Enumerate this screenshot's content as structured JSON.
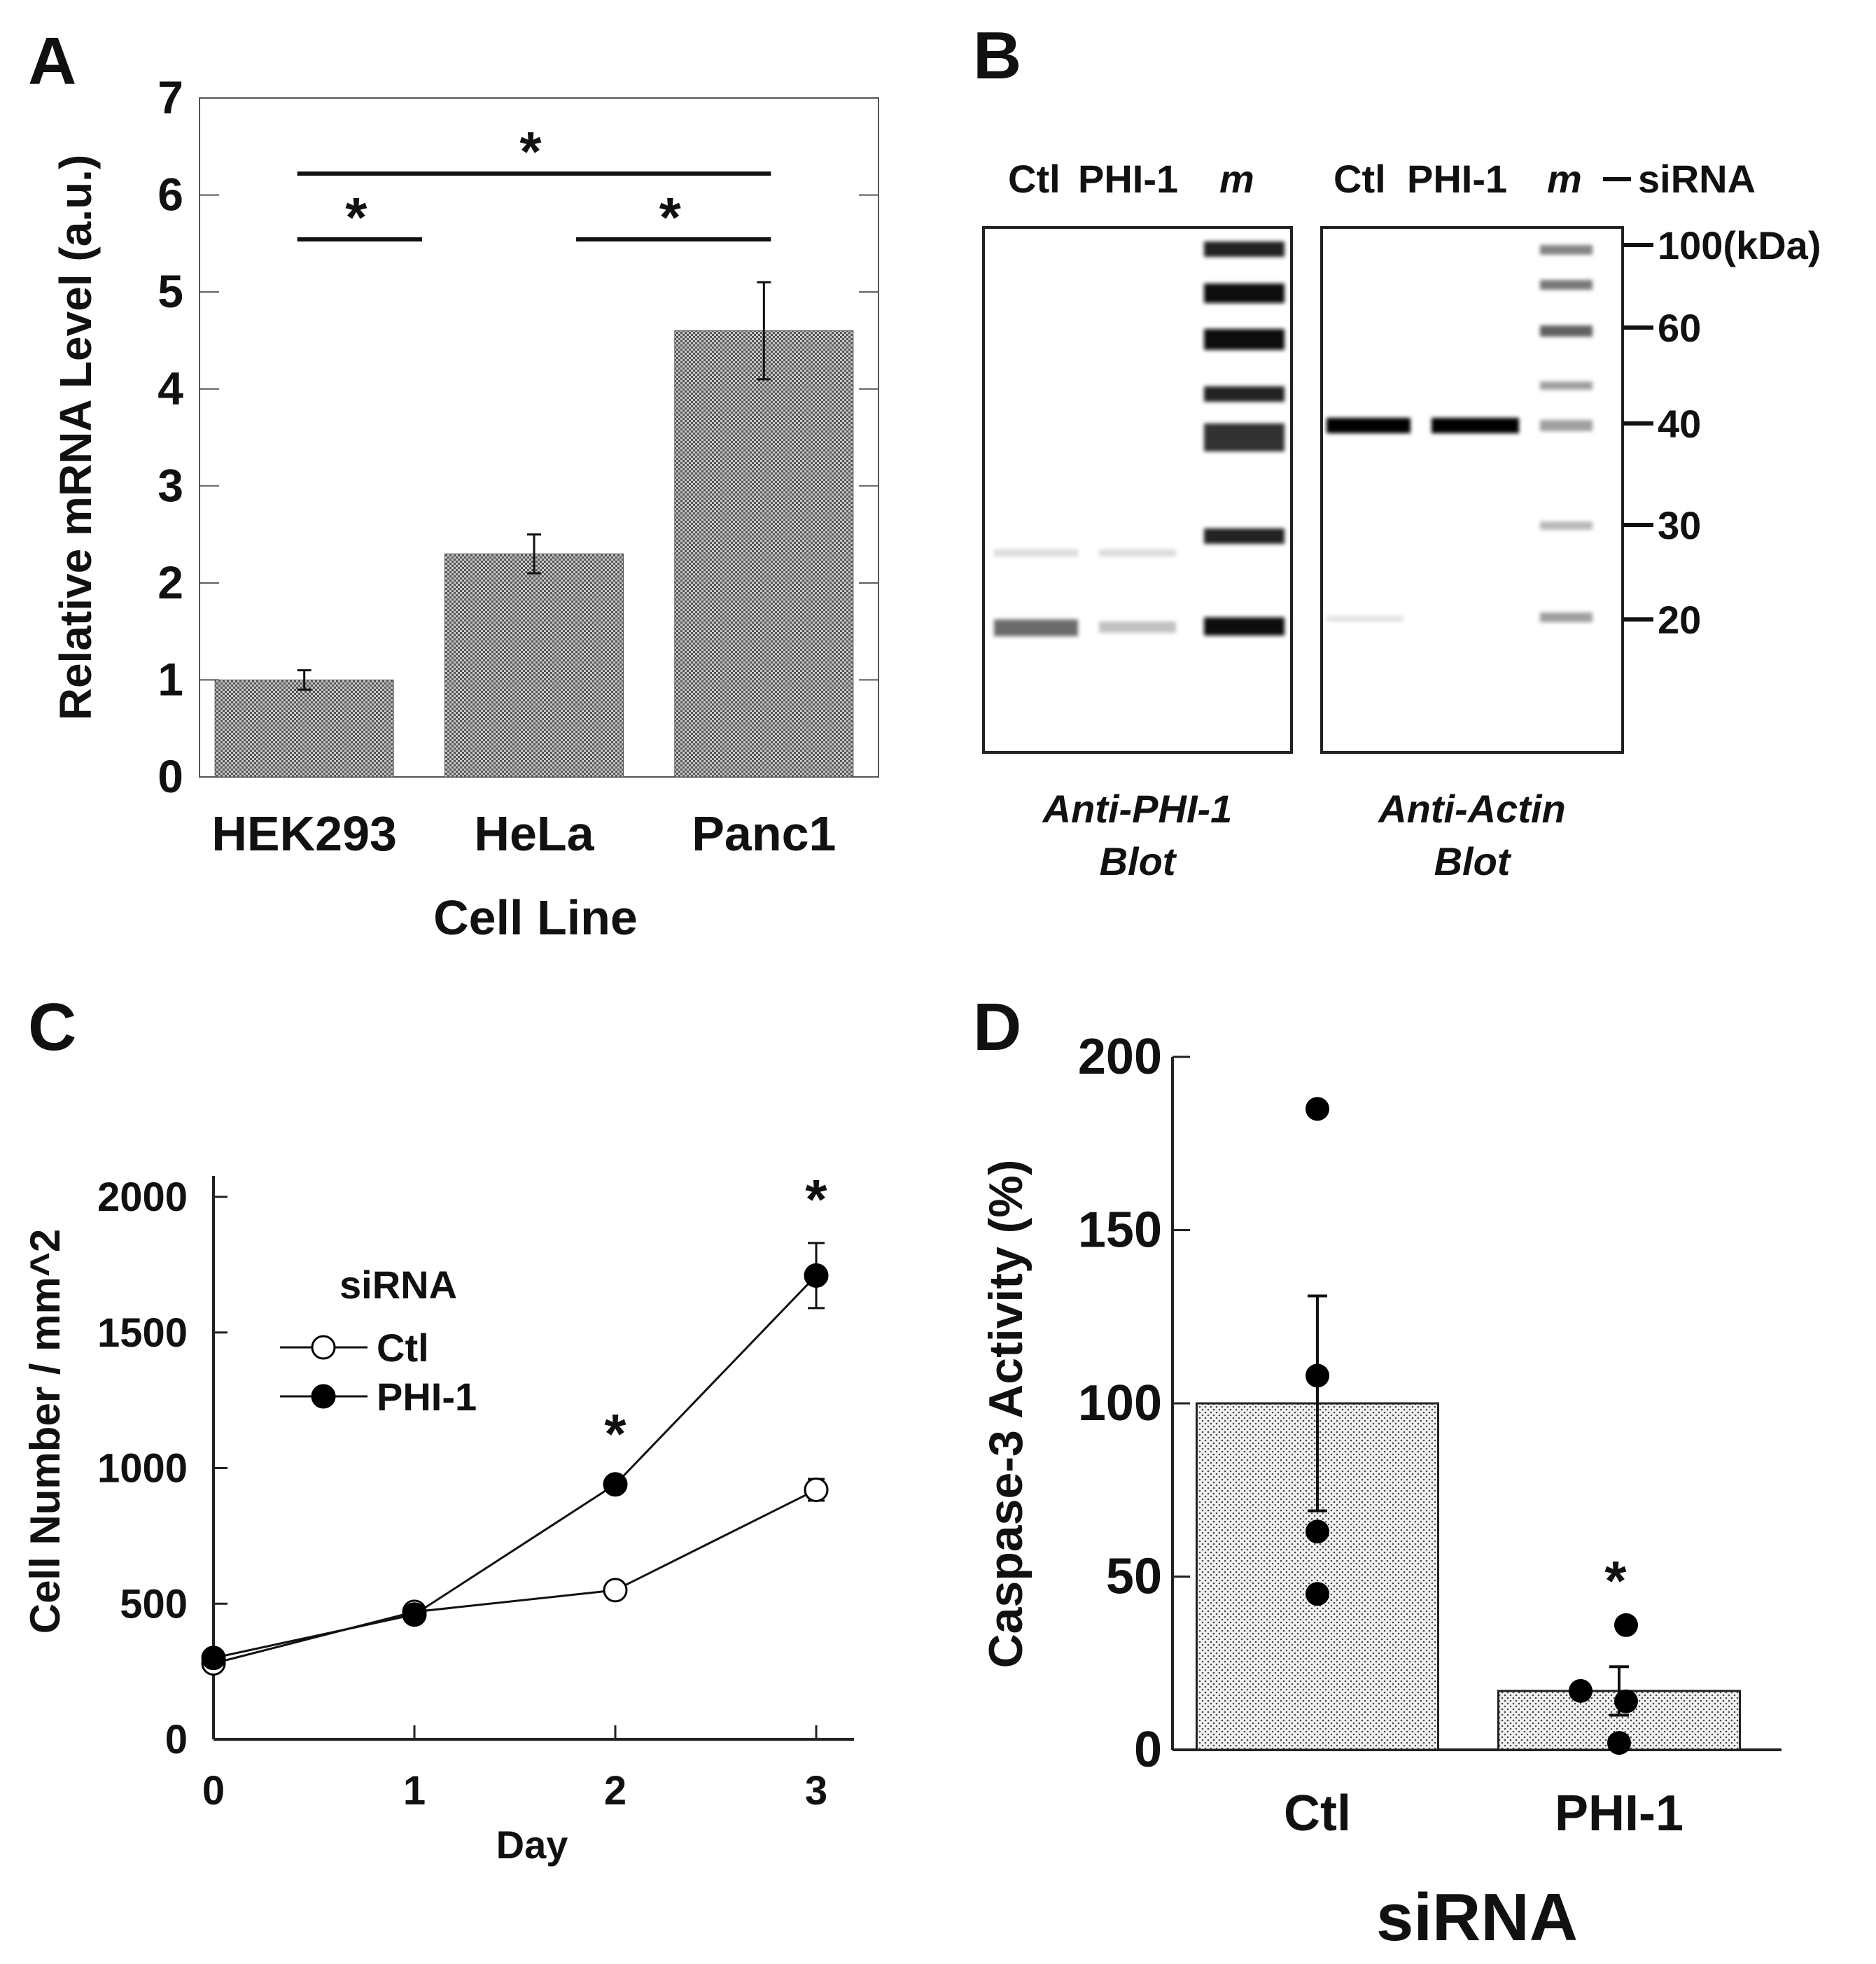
{
  "panel_labels": [
    "A",
    "B",
    "C",
    "D"
  ],
  "chart_data": [
    {
      "panel": "A",
      "type": "bar",
      "categories": [
        "HEK293",
        "HeLa",
        "Panc1"
      ],
      "values": [
        1.0,
        2.3,
        4.6
      ],
      "errors": [
        0.1,
        0.2,
        0.5
      ],
      "xlabel": "Cell Line",
      "ylabel": "Relative mRNA Level (a.u.)",
      "ylim": [
        0,
        7
      ],
      "yticks": [
        "0",
        "1",
        "2",
        "3",
        "4",
        "5",
        "6",
        "7"
      ],
      "significance": [
        {
          "from": "HEK293",
          "to": "Panc1",
          "label": "*"
        },
        {
          "from": "HEK293",
          "to": "HeLa",
          "label": "*"
        },
        {
          "from": "HeLa",
          "to": "Panc1",
          "label": "*"
        }
      ]
    },
    {
      "panel": "C",
      "type": "line",
      "x": [
        0,
        1,
        2,
        3
      ],
      "xticks": [
        "0",
        "1",
        "2",
        "3"
      ],
      "series": [
        {
          "name": "Ctl",
          "marker": "open-circle",
          "values": [
            280,
            470,
            550,
            920
          ],
          "errors": [
            15,
            20,
            15,
            40
          ]
        },
        {
          "name": "PHI-1",
          "marker": "filled-circle",
          "values": [
            300,
            460,
            940,
            1710
          ],
          "errors": [
            15,
            20,
            25,
            120
          ]
        }
      ],
      "xlabel": "Day",
      "ylabel": "Cell Number / mm^2",
      "ylim": [
        0,
        2000
      ],
      "yticks": [
        "0",
        "500",
        "1000",
        "1500",
        "2000"
      ],
      "legend_title": "siRNA",
      "significance_x": [
        2,
        3
      ],
      "significance_label": "*"
    },
    {
      "panel": "D",
      "type": "bar",
      "categories": [
        "Ctl",
        "PHI-1"
      ],
      "values": [
        100,
        17
      ],
      "errors": [
        31,
        7
      ],
      "points": [
        [
          185,
          108,
          63,
          45
        ],
        [
          36,
          17,
          14,
          2
        ]
      ],
      "xlabel": "siRNA",
      "ylabel": "Caspase-3 Activity (%)",
      "ylim": [
        0,
        200
      ],
      "yticks": [
        "0",
        "50",
        "100",
        "150",
        "200"
      ],
      "significance": [
        {
          "category": "PHI-1",
          "label": "*"
        }
      ]
    }
  ],
  "blot": {
    "lane_labels_left": [
      "Ctl",
      "PHI-1",
      "m"
    ],
    "lane_labels_right": [
      "Ctl",
      "PHI-1",
      "m"
    ],
    "sirna_label": "siRNA",
    "markers": [
      "100(kDa)",
      "60",
      "40",
      "30",
      "20"
    ],
    "captions": [
      {
        "line1": "Anti-PHI-1",
        "line2": "Blot"
      },
      {
        "line1": "Anti-Actin",
        "line2": "Blot"
      }
    ]
  }
}
